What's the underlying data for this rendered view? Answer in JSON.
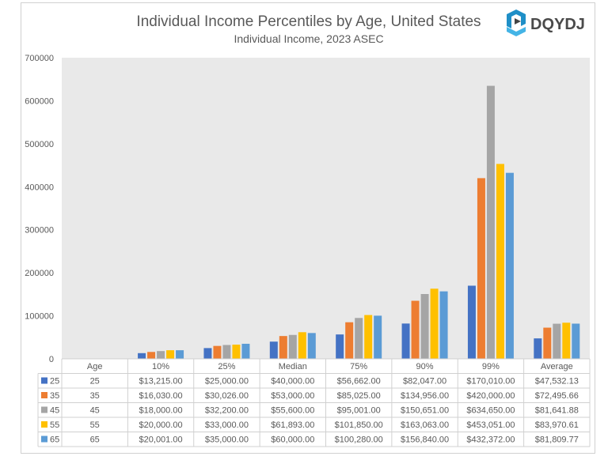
{
  "chart_data": {
    "type": "bar",
    "title": "Individual Income Percentiles by Age, United States",
    "subtitle": "Individual Income, 2023 ASEC",
    "logo_text": "DQYDJ",
    "xlabel": "",
    "ylabel": "",
    "ylim": [
      0,
      700000
    ],
    "yticks": [
      "0",
      "100000",
      "200000",
      "300000",
      "400000",
      "500000",
      "600000",
      "700000"
    ],
    "grid": false,
    "legend": "data-table",
    "categories": [
      "Age",
      "10%",
      "25%",
      "Median",
      "75%",
      "90%",
      "99%",
      "Average"
    ],
    "series": [
      {
        "name": "25",
        "color": "#4472c4",
        "values": [
          25,
          13215,
          25000,
          40000,
          56662,
          82047,
          170010,
          47532.13
        ],
        "labels": [
          "25",
          "$13,215.00",
          "$25,000.00",
          "$40,000.00",
          "$56,662.00",
          "$82,047.00",
          "$170,010.00",
          "$47,532.13"
        ]
      },
      {
        "name": "35",
        "color": "#ed7d31",
        "values": [
          35,
          16030,
          30026,
          53000,
          85025,
          134956,
          420000,
          72495.66
        ],
        "labels": [
          "35",
          "$16,030.00",
          "$30,026.00",
          "$53,000.00",
          "$85,025.00",
          "$134,956.00",
          "$420,000.00",
          "$72,495.66"
        ]
      },
      {
        "name": "45",
        "color": "#a5a5a5",
        "values": [
          45,
          18000,
          32200,
          55600,
          95001,
          150651,
          634650,
          81641.88
        ],
        "labels": [
          "45",
          "$18,000.00",
          "$32,200.00",
          "$55,600.00",
          "$95,001.00",
          "$150,651.00",
          "$634,650.00",
          "$81,641.88"
        ]
      },
      {
        "name": "55",
        "color": "#ffc000",
        "values": [
          55,
          20000,
          33000,
          61893,
          101850,
          163063,
          453051,
          83970.61
        ],
        "labels": [
          "55",
          "$20,000.00",
          "$33,000.00",
          "$61,893.00",
          "$101,850.00",
          "$163,063.00",
          "$453,051.00",
          "$83,970.61"
        ]
      },
      {
        "name": "65",
        "color": "#5b9bd5",
        "values": [
          65,
          20001,
          35000,
          60000,
          100280,
          156840,
          432372,
          81809.77
        ],
        "labels": [
          "65",
          "$20,001.00",
          "$35,000.00",
          "$60,000.00",
          "$100,280.00",
          "$156,840.00",
          "$432,372.00",
          "$81,809.77"
        ]
      }
    ]
  }
}
